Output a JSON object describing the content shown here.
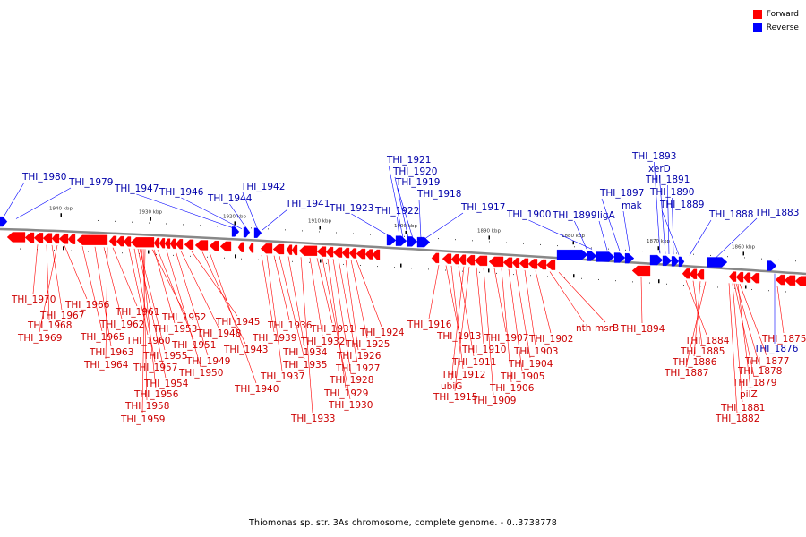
{
  "legend": {
    "forward_label": "Forward",
    "reverse_label": "Reverse",
    "forward_color": "#ff0000",
    "reverse_color": "#0000ff"
  },
  "colors": {
    "forward_text": "#cc0000",
    "reverse_text": "#0000aa",
    "backbone": "#888888"
  },
  "caption": "Thiomonas sp. str. 3As chromosome, complete genome. - 0..3738778",
  "scale_labels": [
    "1940 kbp",
    "1930 kbp",
    "1920 kbp",
    "1910 kbp",
    "1900 kbp",
    "1890 kbp",
    "1880 kbp",
    "1870 kbp",
    "1860 kbp"
  ],
  "reverse_genes": [
    "THI_1980",
    "THI_1979",
    "THI_1947",
    "THI_1946",
    "THI_1944",
    "THI_1942",
    "THI_1941",
    "THI_1923",
    "THI_1922",
    "THI_1921",
    "THI_1920",
    "THI_1919",
    "THI_1918",
    "THI_1917",
    "THI_1900",
    "THI_1899",
    "ligA",
    "THI_1897",
    "mak",
    "THI_1893",
    "xerD",
    "THI_1891",
    "THI_1890",
    "THI_1889",
    "THI_1888",
    "THI_1883",
    "THI_1876"
  ],
  "forward_genes": [
    "THI_1970",
    "THI_1968",
    "THI_1969",
    "THI_1967",
    "THI_1966",
    "THI_1965",
    "THI_1964",
    "THI_1963",
    "THI_1962",
    "THI_1961",
    "THI_1960",
    "THI_1957",
    "THI_1955",
    "THI_1954",
    "THI_1956",
    "THI_1958",
    "THI_1959",
    "THI_1952",
    "THI_1953",
    "THI_1951",
    "THI_1950",
    "THI_1949",
    "THI_1948",
    "THI_1945",
    "THI_1943",
    "THI_1940",
    "THI_1939",
    "THI_1937",
    "THI_1936",
    "THI_1935",
    "THI_1934",
    "THI_1933",
    "THI_1932",
    "THI_1931",
    "THI_1930",
    "THI_1929",
    "THI_1928",
    "THI_1927",
    "THI_1926",
    "THI_1925",
    "THI_1924",
    "THI_1916",
    "THI_1913",
    "THI_1912",
    "THI_1911",
    "ubiG",
    "THI_1915",
    "THI_1910",
    "THI_1909",
    "THI_1907",
    "THI_1906",
    "THI_1905",
    "THI_1904",
    "THI_1903",
    "THI_1902",
    "nth",
    "msrB",
    "THI_1894",
    "THI_1884",
    "THI_1885",
    "THI_1886",
    "THI_1887",
    "THI_1875",
    "THI_1877",
    "THI_1878",
    "THI_1879",
    "pilZ",
    "THI_1881",
    "THI_1882"
  ]
}
